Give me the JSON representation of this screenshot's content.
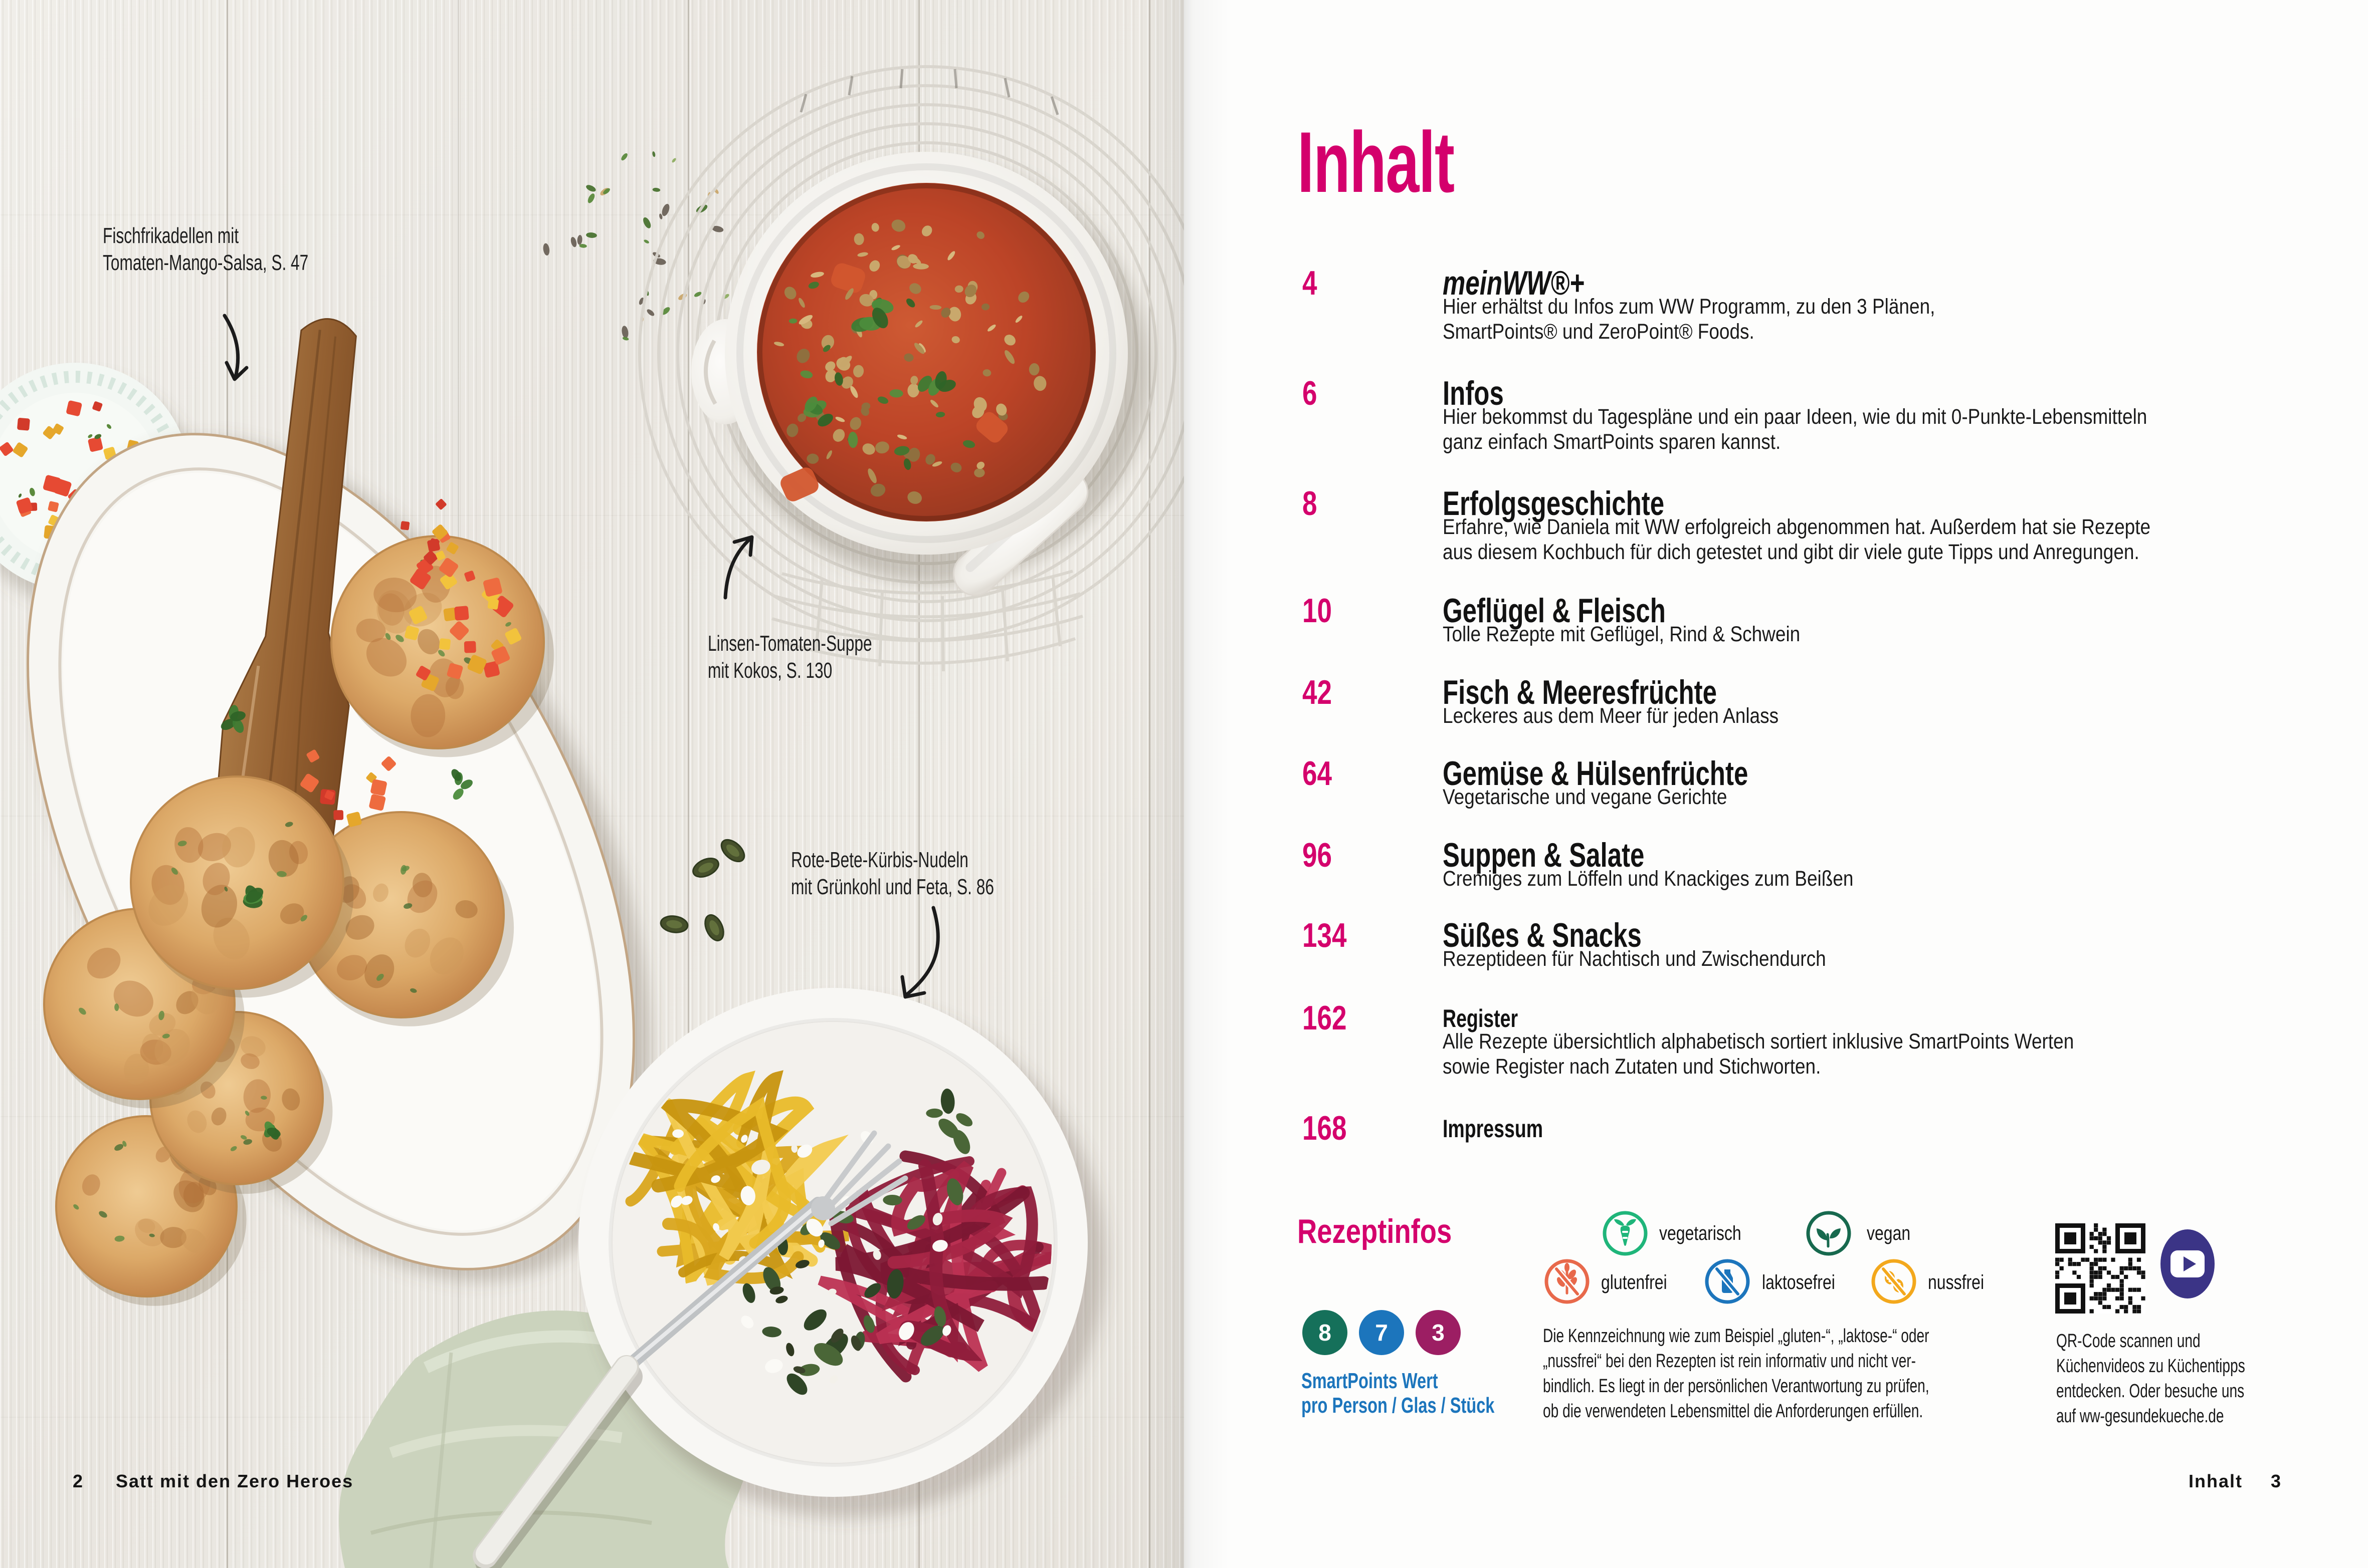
{
  "title": "Inhalt",
  "colors": {
    "accent_pink": "#D4006C",
    "accent_blue": "#1C75BC",
    "ink": "#1A1A1A"
  },
  "toc": {
    "entries": [
      {
        "page": "4",
        "title": "meinWW®+",
        "desc_lines": [
          "Hier erhältst du Infos zum WW Programm, zu den 3 Plänen,",
          "SmartPoints® und ZeroPoint® Foods."
        ]
      },
      {
        "page": "6",
        "title": "Infos",
        "desc_lines": [
          "Hier bekommst du Tagespläne und ein paar Ideen, wie du mit 0-Punkte-Lebensmitteln",
          "ganz einfach SmartPoints sparen kannst."
        ]
      },
      {
        "page": "8",
        "title": "Erfolgsgeschichte",
        "desc_lines": [
          "Erfahre, wie Daniela mit WW erfolgreich abgenommen hat. Außerdem hat sie Rezepte",
          "aus diesem Kochbuch für dich getestet und gibt dir viele gute Tipps und Anregungen."
        ]
      },
      {
        "page": "10",
        "title": "Geflügel & Fleisch",
        "desc_lines": [
          "Tolle Rezepte mit Geflügel, Rind & Schwein"
        ]
      },
      {
        "page": "42",
        "title": "Fisch & Meeresfrüchte",
        "desc_lines": [
          "Leckeres aus dem Meer für jeden Anlass"
        ]
      },
      {
        "page": "64",
        "title": "Gemüse & Hülsenfrüchte",
        "desc_lines": [
          "Vegetarische und vegane Gerichte"
        ]
      },
      {
        "page": "96",
        "title": "Suppen & Salate",
        "desc_lines": [
          "Cremiges zum Löffeln und Knackiges zum Beißen"
        ]
      },
      {
        "page": "134",
        "title": "Süßes & Snacks",
        "desc_lines": [
          "Rezeptideen für Nachtisch und Zwischendurch"
        ]
      },
      {
        "page": "162",
        "title": "Register",
        "desc_lines": [
          "Alle Rezepte übersichtlich alphabetisch sortiert inklusive SmartPoints Werten",
          "sowie Register nach Zutaten und Stichworten."
        ]
      },
      {
        "page": "168",
        "title": "Impressum",
        "desc_lines": []
      }
    ]
  },
  "annotations": [
    {
      "lines": [
        "Fischfrikadellen mit",
        "Tomaten-Mango-Salsa, S. 47"
      ]
    },
    {
      "lines": [
        "Linsen-Tomaten-Suppe",
        "mit Kokos, S. 130"
      ]
    },
    {
      "lines": [
        "Rote-Bete-Kürbis-Nudeln",
        "mit Grünkohl und Feta, S. 86"
      ]
    }
  ],
  "rezeptinfos": {
    "heading": "Rezeptinfos",
    "smartpoints": {
      "badges": [
        {
          "value": "8",
          "color": "#15705A"
        },
        {
          "value": "7",
          "color": "#1C75BC"
        },
        {
          "value": "3",
          "color": "#9C1E63"
        }
      ],
      "label_lines": [
        "SmartPoints Wert",
        "pro Person / Glas / Stück"
      ]
    },
    "diet_icons": [
      {
        "id": "vegetarisch",
        "label": "vegetarisch",
        "color": "#1FB57A"
      },
      {
        "id": "vegan",
        "label": "vegan",
        "color": "#17694E"
      },
      {
        "id": "glutenfrei",
        "label": "glutenfrei",
        "color": "#E8694B"
      },
      {
        "id": "laktosefrei",
        "label": "laktosefrei",
        "color": "#1C75BC"
      },
      {
        "id": "nussfrei",
        "label": "nussfrei",
        "color": "#F3A81C"
      }
    ],
    "legend_lines": [
      "Die Kennzeichnung wie zum Beispiel „gluten-“, „laktose-“ oder",
      "„nussfrei“ bei den Rezepten ist rein informativ und nicht ver-",
      "bindlich. Es liegt in der persönlichen Verantwortung zu prüfen,",
      "ob die verwendeten Lebensmittel die Anforderungen erfüllen."
    ],
    "qr": {
      "play_color": "#3B3486",
      "caption_lines": [
        "QR-Code scannen und",
        "Küchenvideos zu Küchentipps",
        "entdecken. Oder besuche uns",
        "auf ww-gesundekueche.de"
      ]
    }
  },
  "footer": {
    "left": {
      "page_number": "2",
      "book_title": "Satt mit den Zero Heroes"
    },
    "right": {
      "label": "Inhalt",
      "page_number": "3"
    }
  }
}
